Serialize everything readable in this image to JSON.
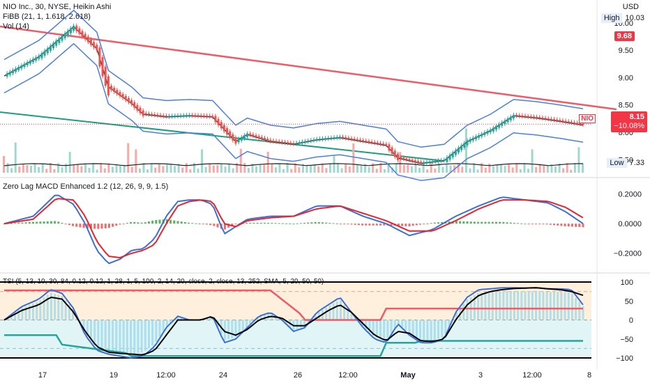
{
  "header": {
    "title": "NIO Inc., 30, NYSE, Heikin Ashi",
    "fibb": "FiBB (21, 1, 1.618, 2.618)",
    "vol": "Vol (14)"
  },
  "panels": {
    "macd_label": "Zero Lag MACD Enhanced 1.2 (12, 26, 9, 9, 1.5)",
    "tsi_label": "TSI (5, 13, 10, 30, 84, 0.12, 0.12, 1, 28, 1, 5, 100, 2, 14, 20, close, 2, close, 13, 252, SMA, 5, 20, 50, 50)"
  },
  "price_axis": {
    "currency": "USD",
    "ticks": [
      "10.00",
      "9.50",
      "9.00",
      "8.50",
      "8.00",
      "7.50"
    ],
    "high_label": "High",
    "high_value": "10.03",
    "low_label": "Low",
    "low_value": "7.33",
    "tag_red": "9.68",
    "symbol": "NIO",
    "last_price": "8.15",
    "change": "−10.08%"
  },
  "macd_axis": {
    "ticks": [
      "0.2000",
      "0.0000",
      "−0.2000"
    ]
  },
  "tsi_axis": {
    "ticks": [
      "100",
      "50",
      "0",
      "−50",
      "−100"
    ]
  },
  "x_axis": {
    "labels": [
      {
        "text": "17",
        "bold": false
      },
      {
        "text": "19",
        "bold": false
      },
      {
        "text": "12:00",
        "bold": false
      },
      {
        "text": "24",
        "bold": false
      },
      {
        "text": "26",
        "bold": false
      },
      {
        "text": "12:00",
        "bold": false
      },
      {
        "text": "May",
        "bold": true
      },
      {
        "text": "3",
        "bold": false
      },
      {
        "text": "12:00",
        "bold": false
      },
      {
        "text": "8",
        "bold": false
      }
    ]
  },
  "colors": {
    "up": "#26a69a",
    "down": "#ef5350",
    "red_line": "#f05a66",
    "green_line": "#1a9e7e",
    "band": "#4a7fe0",
    "ma": "#3c3c3c",
    "macd_blue": "#3b6fd6",
    "macd_red": "#e8232f"
  },
  "chart_data": {
    "type": "line",
    "title": "NIO Inc., 30, NYSE, Heikin Ashi",
    "x_ticks": [
      "17",
      "19",
      "12:00",
      "24",
      "26",
      "12:00",
      "May",
      "3",
      "12:00",
      "8"
    ],
    "price_ylim": [
      7.3,
      10.1
    ],
    "price": {
      "x_index": [
        0,
        6,
        12,
        16,
        18,
        22,
        24,
        28,
        32,
        36,
        40,
        42,
        46,
        50,
        54,
        58,
        62,
        66,
        68,
        72,
        76,
        80,
        84,
        88,
        92,
        96,
        100
      ],
      "close": [
        9.05,
        9.4,
        9.95,
        9.55,
        8.85,
        8.55,
        8.35,
        8.3,
        8.32,
        8.3,
        7.85,
        7.98,
        7.85,
        7.8,
        7.88,
        7.92,
        7.85,
        7.78,
        7.55,
        7.45,
        7.5,
        7.85,
        8.05,
        8.32,
        8.28,
        8.22,
        8.15
      ]
    },
    "macd_ylim": [
      -0.3,
      0.25
    ],
    "macd": {
      "x_index": [
        0,
        5,
        9,
        12,
        14,
        16,
        18,
        20,
        22,
        24,
        26,
        28,
        30,
        32,
        34,
        36,
        38,
        40,
        42,
        46,
        50,
        54,
        58,
        62,
        66,
        70,
        74,
        78,
        82,
        86,
        90,
        94,
        97,
        100
      ],
      "macd": [
        0.0,
        0.05,
        0.2,
        0.13,
        0.0,
        -0.18,
        -0.27,
        -0.24,
        -0.18,
        -0.17,
        -0.1,
        0.05,
        0.15,
        0.16,
        0.16,
        0.13,
        -0.07,
        -0.02,
        0.03,
        0.05,
        0.05,
        0.12,
        0.12,
        0.05,
        0.0,
        -0.08,
        -0.04,
        0.05,
        0.12,
        0.18,
        0.16,
        0.14,
        0.08,
        0.0
      ],
      "signal": [
        0.0,
        0.03,
        0.17,
        0.16,
        0.05,
        -0.12,
        -0.22,
        -0.23,
        -0.2,
        -0.18,
        -0.14,
        0.0,
        0.12,
        0.15,
        0.16,
        0.15,
        0.0,
        -0.02,
        0.02,
        0.04,
        0.05,
        0.1,
        0.12,
        0.07,
        0.02,
        -0.05,
        -0.05,
        0.02,
        0.1,
        0.16,
        0.16,
        0.15,
        0.11,
        0.04
      ]
    },
    "tsi_ylim": [
      -100,
      100
    ],
    "tsi": {
      "x_index": [
        0,
        3,
        6,
        8,
        10,
        12,
        14,
        16,
        18,
        20,
        22,
        24,
        26,
        28,
        30,
        32,
        34,
        36,
        38,
        40,
        42,
        44,
        46,
        48,
        50,
        52,
        54,
        56,
        58,
        60,
        62,
        64,
        66,
        68,
        70,
        72,
        74,
        76,
        78,
        80,
        82,
        84,
        86,
        88,
        90,
        92,
        94,
        96,
        98,
        100
      ],
      "fast": [
        0,
        35,
        55,
        80,
        70,
        30,
        -40,
        -80,
        -90,
        -95,
        -100,
        -95,
        -70,
        -20,
        10,
        0,
        0,
        10,
        -60,
        -50,
        -20,
        10,
        20,
        0,
        -30,
        -20,
        20,
        40,
        60,
        20,
        -20,
        -50,
        -60,
        -10,
        -40,
        -60,
        -60,
        -50,
        20,
        60,
        80,
        82,
        85,
        85,
        84,
        85,
        82,
        82,
        80,
        40
      ],
      "slow": [
        0,
        25,
        40,
        60,
        55,
        20,
        -30,
        -70,
        -85,
        -88,
        -90,
        -92,
        -80,
        -40,
        0,
        0,
        0,
        10,
        -30,
        -40,
        -25,
        0,
        10,
        5,
        -15,
        -15,
        5,
        25,
        40,
        20,
        -10,
        -40,
        -55,
        -30,
        -35,
        -55,
        -57,
        -50,
        0,
        40,
        65,
        75,
        80,
        83,
        84,
        85,
        82,
        80,
        75,
        65
      ]
    }
  }
}
